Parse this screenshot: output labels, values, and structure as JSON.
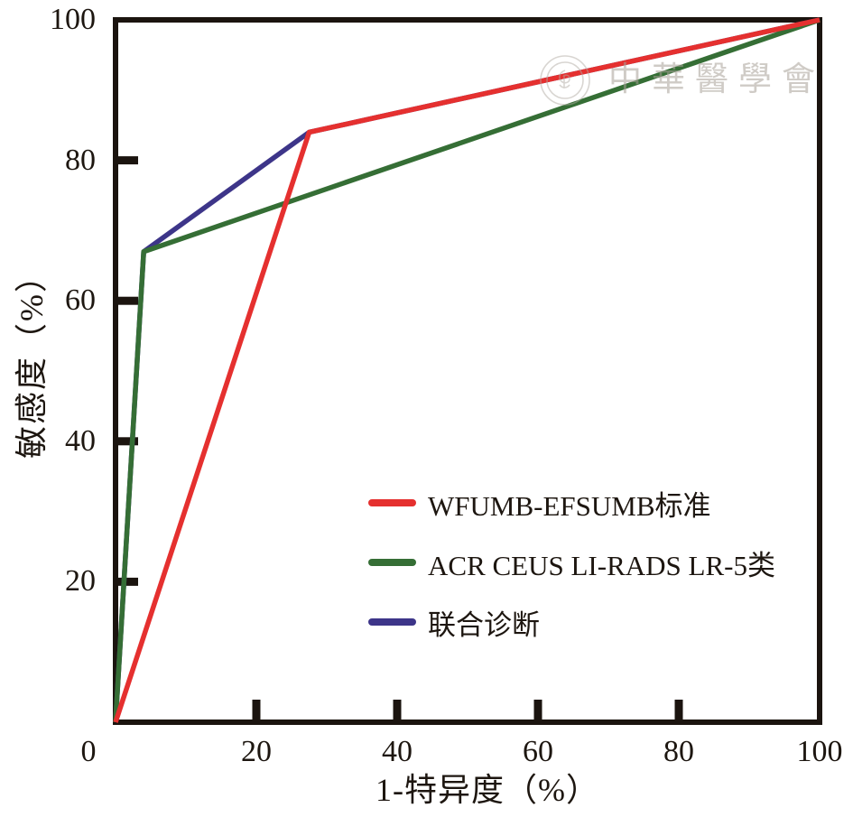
{
  "figure": {
    "background": "#ffffff"
  },
  "watermark": {
    "text": "中華醫學會"
  },
  "chart_data": {
    "type": "line",
    "title": "",
    "xlabel": "1-特异度（%）",
    "ylabel": "敏感度（%）",
    "xlim": [
      0,
      100
    ],
    "ylim": [
      0,
      100
    ],
    "x_ticks": [
      0,
      20,
      40,
      60,
      80,
      100
    ],
    "y_ticks": [
      20,
      40,
      60,
      80,
      100
    ],
    "grid": false,
    "axis_color": "#1b140f",
    "legend_position": "inside lower-right",
    "series": [
      {
        "name": "WFUMB-EFSUMB标准",
        "color": "#e5302f",
        "points": [
          [
            0,
            0
          ],
          [
            27.5,
            84
          ],
          [
            100,
            100
          ]
        ]
      },
      {
        "name": "ACR CEUS LI-RADS LR-5类",
        "color": "#356e35",
        "points": [
          [
            0,
            0
          ],
          [
            4,
            67
          ],
          [
            100,
            100
          ]
        ]
      },
      {
        "name": "联合诊断",
        "color": "#3d3589",
        "points": [
          [
            0,
            0
          ],
          [
            4,
            67
          ],
          [
            27.5,
            84
          ],
          [
            100,
            100
          ]
        ]
      }
    ]
  }
}
